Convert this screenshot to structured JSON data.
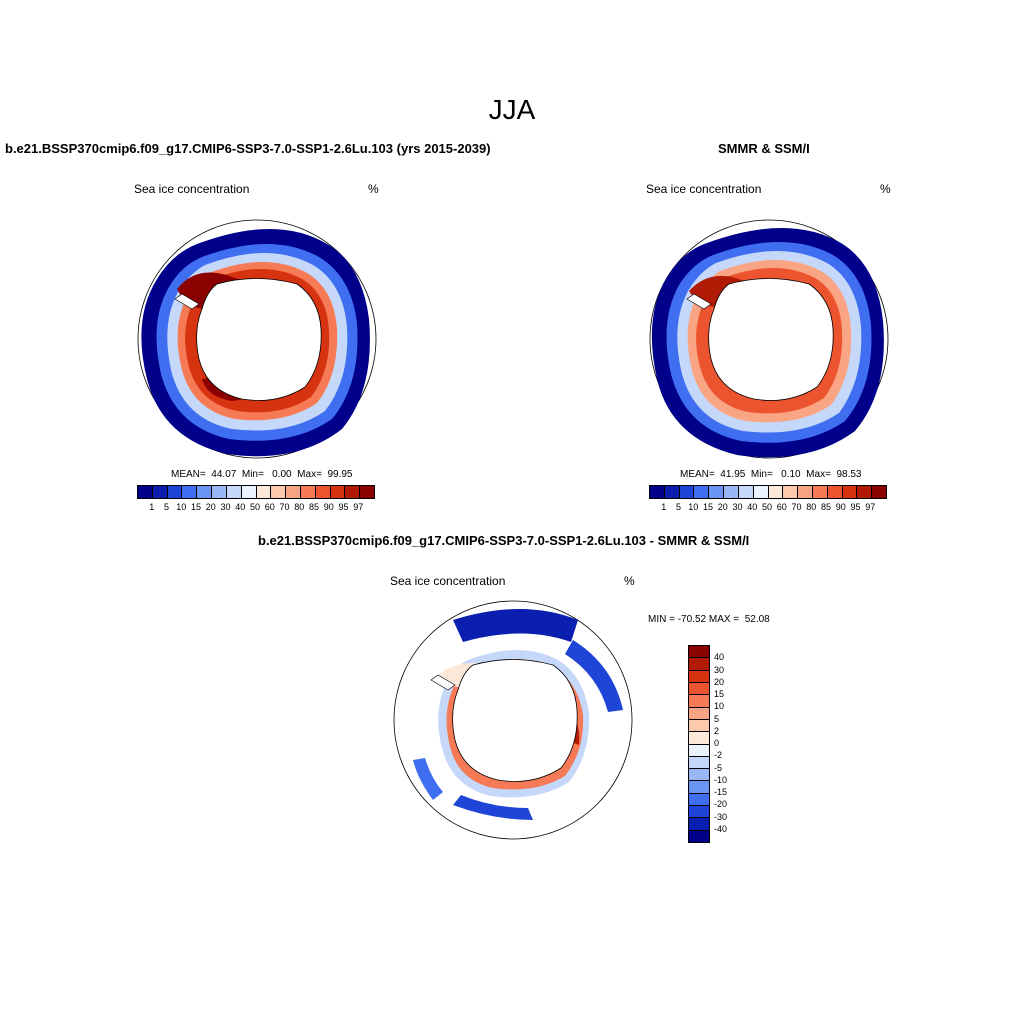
{
  "figure": {
    "title": "JJA"
  },
  "panels": [
    {
      "title": "b.e21.BSSP370cmip6.f09_g17.CMIP6-SSP3-7.0-SSP1-2.6Lu.103 (yrs 2015-2039)",
      "variable": "Sea ice concentration",
      "units": "%",
      "stats": "MEAN=  44.07  Min=   0.00  Max=  99.95"
    },
    {
      "title": "SMMR & SSM/I",
      "variable": "Sea ice concentration",
      "units": "%",
      "stats": "MEAN=  41.95  Min=   0.10  Max=  98.53"
    },
    {
      "title": "b.e21.BSSP370cmip6.f09_g17.CMIP6-SSP3-7.0-SSP1-2.6Lu.103 - SMMR & SSM/I",
      "variable": "Sea ice concentration",
      "units": "%",
      "stats": "MIN = -70.52 MAX =  52.08"
    }
  ],
  "colorbars": {
    "concentration": {
      "labels": [
        "1",
        "5",
        "10",
        "15",
        "20",
        "30",
        "40",
        "50",
        "60",
        "70",
        "80",
        "85",
        "90",
        "95",
        "97"
      ],
      "colors": [
        "#00008b",
        "#0a1fb0",
        "#1f45d8",
        "#3f6ff0",
        "#6a95f5",
        "#98b7f7",
        "#c6d8fa",
        "#eaf2fd",
        "#fde9d9",
        "#fcc9ad",
        "#f9a483",
        "#f57a55",
        "#ec5430",
        "#d63310",
        "#b11a05",
        "#8b0000"
      ]
    },
    "difference": {
      "labels": [
        "40",
        "30",
        "20",
        "15",
        "10",
        "5",
        "2",
        "0",
        "-2",
        "-5",
        "-10",
        "-15",
        "-20",
        "-30",
        "-40"
      ],
      "colors": [
        "#8b0000",
        "#b11a05",
        "#d63310",
        "#ec5430",
        "#f57a55",
        "#f9a483",
        "#fcc9ad",
        "#fde9d9",
        "#eaf2fd",
        "#c6d8fa",
        "#98b7f7",
        "#6a95f5",
        "#3f6ff0",
        "#1f45d8",
        "#0a1fb0",
        "#00008b"
      ]
    }
  },
  "map_colors": {
    "ocean": "#ffffff",
    "land": "#ffffff",
    "coast": "#000000",
    "ice_dark_red": "#8b0000",
    "ice_red": "#d63310",
    "ice_orange": "#f57a55",
    "ice_blue": "#1f45d8",
    "ice_dark_blue": "#00008b"
  }
}
